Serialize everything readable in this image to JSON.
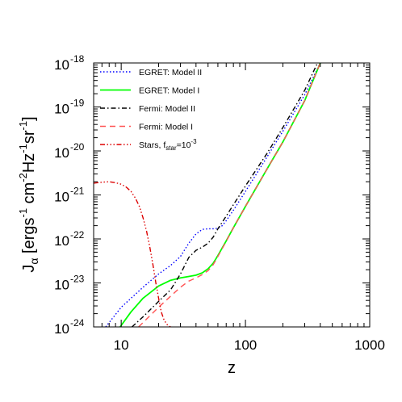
{
  "chart_data": {
    "type": "line",
    "title": "",
    "xlabel": "z",
    "ylabel": {
      "base": "J",
      "subscript": "α",
      "units": "[ergs",
      "units_parts": [
        "[ergs",
        "-1",
        " cm",
        "-2",
        "Hz",
        "-1",
        "sr",
        "-1",
        "]"
      ]
    },
    "xscale": "log",
    "yscale": "log",
    "xlim": [
      6,
      1000
    ],
    "ylim": [
      1e-24,
      1e-18
    ],
    "x_ticks": [
      {
        "value": 10,
        "label": "10"
      },
      {
        "value": 100,
        "label": "100"
      },
      {
        "value": 1000,
        "label": "1000"
      }
    ],
    "y_ticks": [
      {
        "value": 1e-24,
        "base": "10",
        "exp": "-24"
      },
      {
        "value": 1e-23,
        "base": "10",
        "exp": "-23"
      },
      {
        "value": 1e-22,
        "base": "10",
        "exp": "-22"
      },
      {
        "value": 1e-21,
        "base": "10",
        "exp": "-21"
      },
      {
        "value": 1e-20,
        "base": "10",
        "exp": "-20"
      },
      {
        "value": 1e-19,
        "base": "10",
        "exp": "-19"
      },
      {
        "value": 1e-18,
        "base": "10",
        "exp": "-18"
      }
    ],
    "grid": false,
    "legend_position": "top-left",
    "series": [
      {
        "name": "EGRET: Model II",
        "color": "#0000ff",
        "dash": "dotted",
        "x": [
          7.5,
          10,
          15,
          20,
          25,
          30,
          35,
          40,
          45,
          50,
          55,
          60,
          65,
          70,
          80,
          100,
          150,
          200,
          300,
          400
        ],
        "y": [
          1e-24,
          2.8e-24,
          8e-24,
          1.6e-23,
          2.5e-23,
          4e-23,
          8e-23,
          1.3e-22,
          1.65e-22,
          1.7e-22,
          1.7e-22,
          1.75e-22,
          2e-22,
          2.6e-22,
          4.5e-22,
          1.2e-21,
          7.5e-21,
          2.8e-20,
          1.9e-19,
          1e-18
        ]
      },
      {
        "name": "EGRET: Model I",
        "label_text": "EGRET: Model I",
        "color": "#00ff00",
        "dash": "solid",
        "x": [
          9.8,
          12,
          15,
          20,
          25,
          30,
          35,
          40,
          45,
          50,
          55,
          60,
          70,
          80,
          100,
          150,
          200,
          300,
          400
        ],
        "y": [
          1e-24,
          2.2e-24,
          4.5e-24,
          8.5e-24,
          1.15e-23,
          1.3e-23,
          1.4e-23,
          1.5e-23,
          1.7e-23,
          2.1e-23,
          2.8e-23,
          4.2e-23,
          9e-23,
          1.8e-22,
          5.5e-22,
          4e-21,
          1.6e-20,
          1.4e-19,
          1e-18
        ]
      },
      {
        "name": "Fermi: Model II",
        "color": "#000000",
        "dash": "dashdot",
        "x": [
          12.2,
          15,
          20,
          25,
          30,
          35,
          40,
          45,
          50,
          55,
          60,
          70,
          80,
          100,
          150,
          200,
          300,
          380
        ],
        "y": [
          1e-24,
          1.7e-24,
          3.8e-24,
          7e-24,
          1.6e-23,
          3.8e-23,
          5.5e-23,
          6.5e-23,
          8e-23,
          1.1e-22,
          1.7e-22,
          3.3e-22,
          6e-22,
          1.6e-21,
          9e-21,
          3.4e-20,
          2.4e-19,
          1e-18
        ]
      },
      {
        "name": "Fermi: Model I",
        "color": "#ff5555",
        "dash": "dashed",
        "x": [
          13.8,
          20,
          25,
          30,
          35,
          40,
          45,
          50,
          55,
          60,
          70,
          80,
          100,
          150,
          200,
          300,
          400
        ],
        "y": [
          1e-24,
          2.8e-24,
          5e-24,
          8e-24,
          1.1e-23,
          1.3e-23,
          1.55e-23,
          1.9e-23,
          2.6e-23,
          4e-23,
          8.8e-23,
          1.8e-22,
          5.5e-22,
          4e-21,
          1.6e-20,
          1.4e-19,
          1e-18
        ]
      },
      {
        "name": "Stars, f_star=10^-3",
        "label_text": "Stars, f",
        "label_sub": "star",
        "label_tail": "=10",
        "label_sup": "-3",
        "color": "#dd0000",
        "dash": "dashdotdotdot",
        "x": [
          6,
          7,
          8,
          9,
          10,
          11,
          12,
          13,
          14,
          15,
          16,
          17,
          18,
          19,
          20,
          21,
          22,
          23,
          24,
          25
        ],
        "y": [
          1.85e-21,
          1.95e-21,
          2e-21,
          1.9e-21,
          1.75e-21,
          1.5e-21,
          1.2e-21,
          8.5e-22,
          5.5e-22,
          3e-22,
          1.5e-22,
          6.5e-23,
          2.6e-23,
          1e-23,
          4.5e-24,
          2.2e-24,
          1.5e-24,
          1.2e-24,
          1.05e-24,
          1e-24
        ]
      }
    ]
  }
}
